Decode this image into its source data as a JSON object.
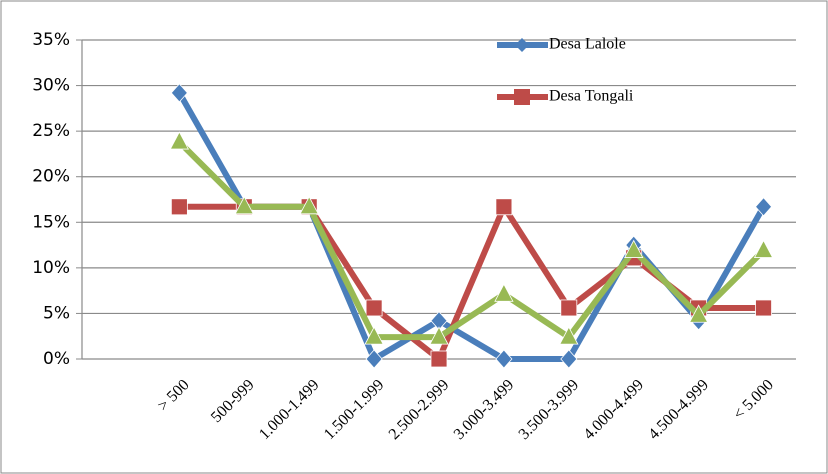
{
  "chart_data": {
    "type": "line",
    "categories": [
      "> 500",
      "500-999",
      "1.000-1.499",
      "1.500-1.999",
      "2.500-2.999",
      "3.000-3.499",
      "3.500-3.999",
      "4.000-4.499",
      "4.500-4.999",
      "< 5.000"
    ],
    "series": [
      {
        "name": "Desa Lalole",
        "color": "#4a7ebb",
        "marker": "diamond",
        "values": [
          29.2,
          16.7,
          16.7,
          0,
          4.2,
          0,
          0,
          12.5,
          4.2,
          16.7
        ]
      },
      {
        "name": "Desa Tongali",
        "color": "#be4b48",
        "marker": "square",
        "values": [
          16.7,
          16.7,
          16.7,
          5.6,
          0,
          16.7,
          5.6,
          11.1,
          5.6,
          5.6
        ]
      },
      {
        "color": "#98b954",
        "marker": "triangle",
        "values": [
          23.8,
          16.7,
          16.7,
          2.4,
          2.4,
          7.1,
          2.4,
          11.9,
          4.8,
          11.9
        ]
      }
    ],
    "ylim": [
      0,
      35
    ],
    "yticks": [
      {
        "value": 0,
        "label": "0%"
      },
      {
        "value": 5,
        "label": "5%"
      },
      {
        "value": 10,
        "label": "10%"
      },
      {
        "value": 15,
        "label": "15%"
      },
      {
        "value": 20,
        "label": "20%"
      },
      {
        "value": 25,
        "label": "25%"
      },
      {
        "value": 30,
        "label": "30%"
      },
      {
        "value": 35,
        "label": "35%"
      }
    ],
    "grid": true,
    "legend": "top-right"
  }
}
